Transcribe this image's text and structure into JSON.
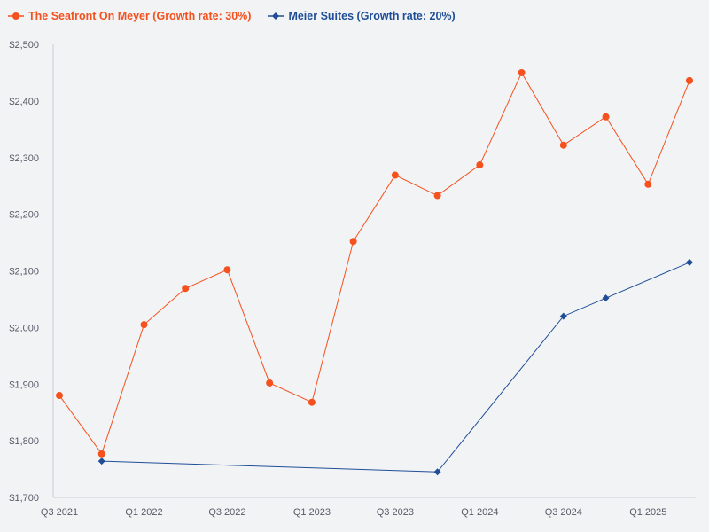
{
  "legend": [
    {
      "label": "The Seafront On Meyer (Growth rate: 30%)",
      "color": "#f4511e"
    },
    {
      "label": "Meier Suites (Growth rate: 20%)",
      "color": "#1f4e96"
    }
  ],
  "chart_data": {
    "type": "line",
    "ylim": [
      1700,
      2500
    ],
    "y_ticks": [
      "$1,700",
      "$1,800",
      "$1,900",
      "$2,000",
      "$2,100",
      "$2,200",
      "$2,300",
      "$2,400",
      "$2,500"
    ],
    "x_ticks": [
      "Q3 2021",
      "Q1 2022",
      "Q3 2022",
      "Q1 2023",
      "Q3 2023",
      "Q1 2024",
      "Q3 2024",
      "Q1 2025"
    ],
    "grid": false,
    "legend_position": "top-left",
    "series": [
      {
        "name": "The Seafront On Meyer (Growth rate: 30%)",
        "color": "#f4511e",
        "marker": "circle",
        "points": [
          [
            "2021-07-01",
            1880
          ],
          [
            "2021-10-01",
            1777
          ],
          [
            "2022-01-01",
            2005
          ],
          [
            "2022-04-01",
            2069
          ],
          [
            "2022-07-01",
            2102
          ],
          [
            "2022-10-01",
            1902
          ],
          [
            "2023-01-01",
            1868
          ],
          [
            "2023-04-01",
            2152
          ],
          [
            "2023-07-01",
            2269
          ],
          [
            "2023-10-01",
            2233
          ],
          [
            "2024-01-01",
            2287
          ],
          [
            "2024-04-01",
            2450
          ],
          [
            "2024-07-01",
            2322
          ],
          [
            "2024-10-01",
            2372
          ],
          [
            "2025-01-01",
            2253
          ],
          [
            "2025-04-01",
            2436
          ]
        ]
      },
      {
        "name": "Meier Suites (Growth rate: 20%)",
        "color": "#1f4e96",
        "marker": "diamond",
        "points": [
          [
            "2021-10-01",
            1764
          ],
          [
            "2023-10-01",
            1745
          ],
          [
            "2024-07-01",
            2020
          ],
          [
            "2024-10-01",
            2052
          ],
          [
            "2025-04-01",
            2115
          ]
        ]
      }
    ]
  }
}
